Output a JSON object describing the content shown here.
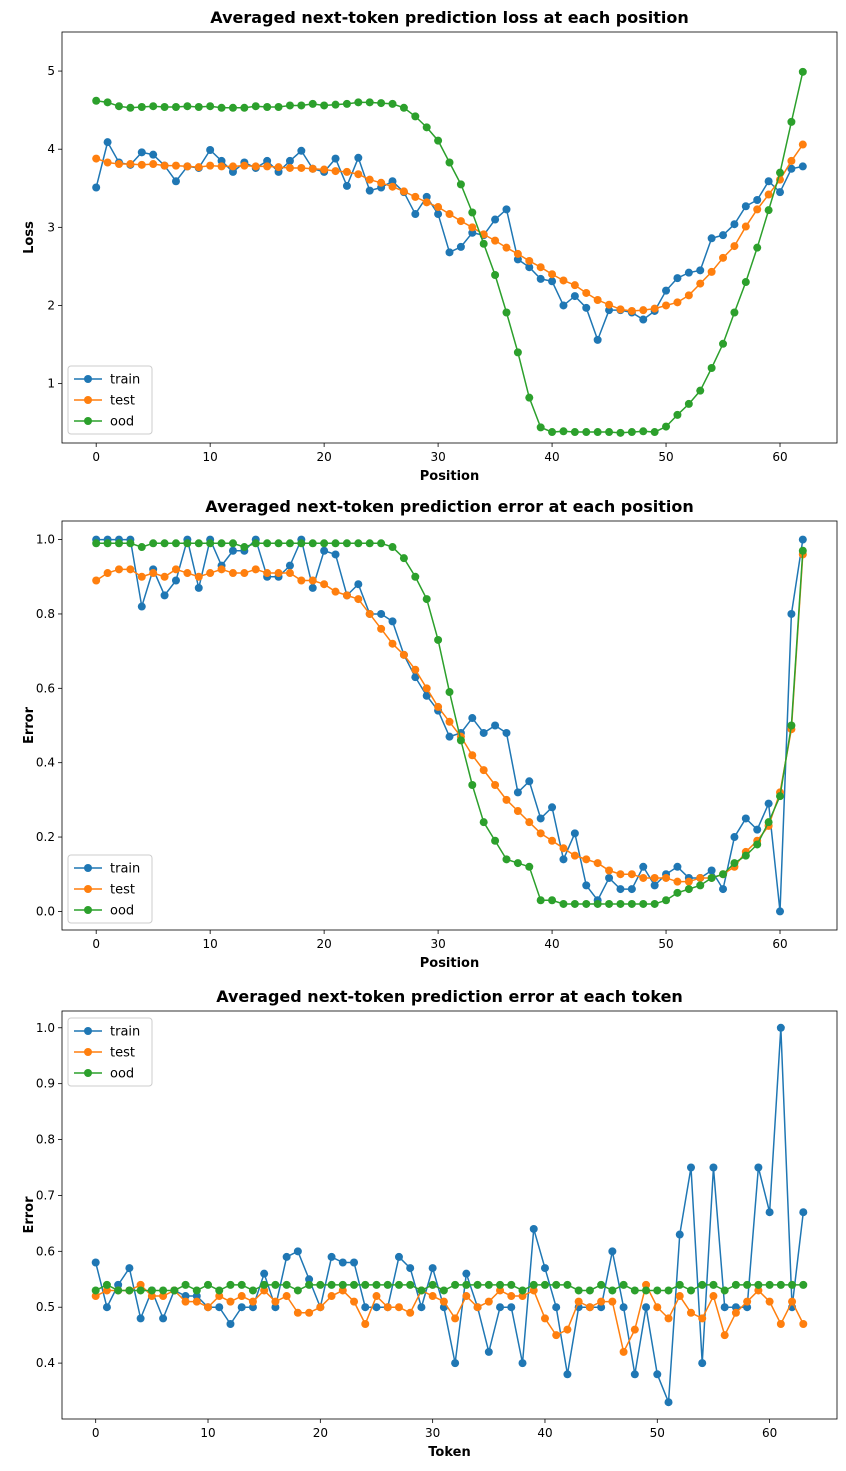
{
  "colors": {
    "train": "#1f77b4",
    "test": "#ff7f0e",
    "ood": "#2ca02c"
  },
  "chart_data": [
    {
      "type": "line",
      "title": "Averaged next-token prediction loss at each position",
      "xlabel": "Position",
      "ylabel": "Loss",
      "xlim": [
        -3,
        65
      ],
      "ylim": [
        0.24,
        5.5
      ],
      "xticks": [
        0,
        10,
        20,
        30,
        40,
        50,
        60
      ],
      "yticks": [
        1,
        2,
        3,
        4,
        5
      ],
      "legend": "lower-left",
      "x": [
        0,
        1,
        2,
        3,
        4,
        5,
        6,
        7,
        8,
        9,
        10,
        11,
        12,
        13,
        14,
        15,
        16,
        17,
        18,
        19,
        20,
        21,
        22,
        23,
        24,
        25,
        26,
        27,
        28,
        29,
        30,
        31,
        32,
        33,
        34,
        35,
        36,
        37,
        38,
        39,
        40,
        41,
        42,
        43,
        44,
        45,
        46,
        47,
        48,
        49,
        50,
        51,
        52,
        53,
        54,
        55,
        56,
        57,
        58,
        59,
        60,
        61,
        62
      ],
      "series": [
        {
          "name": "train",
          "values": [
            3.51,
            4.09,
            3.83,
            3.8,
            3.96,
            3.93,
            3.79,
            3.59,
            3.78,
            3.76,
            3.99,
            3.85,
            3.71,
            3.83,
            3.76,
            3.85,
            3.71,
            3.85,
            3.98,
            3.75,
            3.71,
            3.88,
            3.53,
            3.89,
            3.47,
            3.51,
            3.59,
            3.45,
            3.17,
            3.39,
            3.17,
            2.68,
            2.75,
            2.93,
            2.9,
            3.1,
            3.23,
            2.59,
            2.49,
            2.34,
            2.31,
            2.0,
            2.12,
            1.97,
            1.56,
            1.94,
            1.94,
            1.91,
            1.82,
            1.93,
            2.19,
            2.35,
            2.42,
            2.45,
            2.86,
            2.9,
            3.04,
            3.27,
            3.35,
            3.59,
            3.45,
            3.75,
            3.78
          ]
        },
        {
          "name": "test",
          "values": [
            3.88,
            3.83,
            3.81,
            3.81,
            3.8,
            3.81,
            3.79,
            3.79,
            3.78,
            3.77,
            3.79,
            3.78,
            3.78,
            3.79,
            3.78,
            3.78,
            3.77,
            3.76,
            3.76,
            3.75,
            3.74,
            3.72,
            3.71,
            3.68,
            3.61,
            3.57,
            3.52,
            3.46,
            3.39,
            3.32,
            3.26,
            3.17,
            3.08,
            3.0,
            2.91,
            2.83,
            2.74,
            2.66,
            2.57,
            2.49,
            2.4,
            2.32,
            2.26,
            2.16,
            2.07,
            2.01,
            1.95,
            1.93,
            1.94,
            1.96,
            2.0,
            2.04,
            2.13,
            2.28,
            2.43,
            2.61,
            2.76,
            3.01,
            3.23,
            3.42,
            3.61,
            3.85,
            4.06
          ]
        },
        {
          "name": "ood",
          "values": [
            4.62,
            4.6,
            4.55,
            4.53,
            4.54,
            4.55,
            4.54,
            4.54,
            4.55,
            4.54,
            4.55,
            4.53,
            4.53,
            4.53,
            4.55,
            4.54,
            4.54,
            4.56,
            4.56,
            4.58,
            4.56,
            4.57,
            4.58,
            4.6,
            4.6,
            4.59,
            4.58,
            4.53,
            4.42,
            4.28,
            4.11,
            3.83,
            3.55,
            3.19,
            2.79,
            2.39,
            1.91,
            1.4,
            0.82,
            0.44,
            0.38,
            0.39,
            0.38,
            0.38,
            0.38,
            0.38,
            0.37,
            0.38,
            0.39,
            0.38,
            0.45,
            0.6,
            0.74,
            0.91,
            1.2,
            1.51,
            1.91,
            2.3,
            2.74,
            3.22,
            3.7,
            4.35,
            4.99
          ]
        }
      ]
    },
    {
      "type": "line",
      "title": "Averaged next-token prediction error at each position",
      "xlabel": "Position",
      "ylabel": "Error",
      "xlim": [
        -3,
        65
      ],
      "ylim": [
        -0.05,
        1.05
      ],
      "xticks": [
        0,
        10,
        20,
        30,
        40,
        50,
        60
      ],
      "yticks": [
        0.0,
        0.2,
        0.4,
        0.6,
        0.8,
        1.0
      ],
      "legend": "lower-left",
      "x": [
        0,
        1,
        2,
        3,
        4,
        5,
        6,
        7,
        8,
        9,
        10,
        11,
        12,
        13,
        14,
        15,
        16,
        17,
        18,
        19,
        20,
        21,
        22,
        23,
        24,
        25,
        26,
        27,
        28,
        29,
        30,
        31,
        32,
        33,
        34,
        35,
        36,
        37,
        38,
        39,
        40,
        41,
        42,
        43,
        44,
        45,
        46,
        47,
        48,
        49,
        50,
        51,
        52,
        53,
        54,
        55,
        56,
        57,
        58,
        59,
        60,
        61,
        62
      ],
      "series": [
        {
          "name": "train",
          "values": [
            1.0,
            1.0,
            1.0,
            1.0,
            0.82,
            0.92,
            0.85,
            0.89,
            1.0,
            0.87,
            1.0,
            0.93,
            0.97,
            0.97,
            1.0,
            0.9,
            0.9,
            0.93,
            1.0,
            0.87,
            0.97,
            0.96,
            0.85,
            0.88,
            0.8,
            0.8,
            0.78,
            0.69,
            0.63,
            0.58,
            0.54,
            0.47,
            0.48,
            0.52,
            0.48,
            0.5,
            0.48,
            0.32,
            0.35,
            0.25,
            0.28,
            0.14,
            0.21,
            0.07,
            0.03,
            0.09,
            0.06,
            0.06,
            0.12,
            0.07,
            0.1,
            0.12,
            0.09,
            0.09,
            0.11,
            0.06,
            0.2,
            0.25,
            0.22,
            0.29,
            0.0,
            0.8,
            1.0
          ]
        },
        {
          "name": "test",
          "values": [
            0.89,
            0.91,
            0.92,
            0.92,
            0.9,
            0.91,
            0.9,
            0.92,
            0.91,
            0.9,
            0.91,
            0.92,
            0.91,
            0.91,
            0.92,
            0.91,
            0.91,
            0.91,
            0.89,
            0.89,
            0.88,
            0.86,
            0.85,
            0.84,
            0.8,
            0.76,
            0.72,
            0.69,
            0.65,
            0.6,
            0.55,
            0.51,
            0.47,
            0.42,
            0.38,
            0.34,
            0.3,
            0.27,
            0.24,
            0.21,
            0.19,
            0.17,
            0.15,
            0.14,
            0.13,
            0.11,
            0.1,
            0.1,
            0.09,
            0.09,
            0.09,
            0.08,
            0.08,
            0.09,
            0.09,
            0.1,
            0.12,
            0.16,
            0.19,
            0.23,
            0.32,
            0.49,
            0.96
          ]
        },
        {
          "name": "ood",
          "values": [
            0.99,
            0.99,
            0.99,
            0.99,
            0.98,
            0.99,
            0.99,
            0.99,
            0.99,
            0.99,
            0.99,
            0.99,
            0.99,
            0.98,
            0.99,
            0.99,
            0.99,
            0.99,
            0.99,
            0.99,
            0.99,
            0.99,
            0.99,
            0.99,
            0.99,
            0.99,
            0.98,
            0.95,
            0.9,
            0.84,
            0.73,
            0.59,
            0.46,
            0.34,
            0.24,
            0.19,
            0.14,
            0.13,
            0.12,
            0.03,
            0.03,
            0.02,
            0.02,
            0.02,
            0.02,
            0.02,
            0.02,
            0.02,
            0.02,
            0.02,
            0.03,
            0.05,
            0.06,
            0.07,
            0.09,
            0.1,
            0.13,
            0.15,
            0.18,
            0.24,
            0.31,
            0.5,
            0.97
          ]
        }
      ]
    },
    {
      "type": "line",
      "title": "Averaged next-token prediction error at each token",
      "xlabel": "Token",
      "ylabel": "Error",
      "xlim": [
        -3,
        66
      ],
      "ylim": [
        0.3,
        1.03
      ],
      "xticks": [
        0,
        10,
        20,
        30,
        40,
        50,
        60
      ],
      "yticks": [
        0.4,
        0.5,
        0.6,
        0.7,
        0.8,
        0.9,
        1.0
      ],
      "legend": "upper-left",
      "x": [
        0,
        1,
        2,
        3,
        4,
        5,
        6,
        7,
        8,
        9,
        10,
        11,
        12,
        13,
        14,
        15,
        16,
        17,
        18,
        19,
        20,
        21,
        22,
        23,
        24,
        25,
        26,
        27,
        28,
        29,
        30,
        31,
        32,
        33,
        34,
        35,
        36,
        37,
        38,
        39,
        40,
        41,
        42,
        43,
        44,
        45,
        46,
        47,
        48,
        49,
        50,
        51,
        52,
        53,
        54,
        55,
        56,
        57,
        58,
        59,
        60,
        61,
        62,
        63
      ],
      "series": [
        {
          "name": "train",
          "values": [
            0.58,
            0.5,
            0.54,
            0.57,
            0.48,
            0.53,
            0.48,
            0.53,
            0.52,
            0.52,
            0.5,
            0.5,
            0.47,
            0.5,
            0.5,
            0.56,
            0.5,
            0.59,
            0.6,
            0.55,
            0.5,
            0.59,
            0.58,
            0.58,
            0.5,
            0.5,
            0.5,
            0.59,
            0.57,
            0.5,
            0.57,
            0.5,
            0.4,
            0.56,
            0.5,
            0.42,
            0.5,
            0.5,
            0.4,
            0.64,
            0.57,
            0.5,
            0.38,
            0.5,
            0.5,
            0.5,
            0.6,
            0.5,
            0.38,
            0.5,
            0.38,
            0.33,
            0.63,
            0.75,
            0.4,
            0.75,
            0.5,
            0.5,
            0.5,
            0.75,
            0.67,
            1.0,
            0.5,
            0.67
          ]
        },
        {
          "name": "test",
          "values": [
            0.52,
            0.53,
            0.53,
            0.53,
            0.54,
            0.52,
            0.52,
            0.53,
            0.51,
            0.51,
            0.5,
            0.52,
            0.51,
            0.52,
            0.51,
            0.53,
            0.51,
            0.52,
            0.49,
            0.49,
            0.5,
            0.52,
            0.53,
            0.51,
            0.47,
            0.52,
            0.5,
            0.5,
            0.49,
            0.53,
            0.52,
            0.51,
            0.48,
            0.52,
            0.5,
            0.51,
            0.53,
            0.52,
            0.52,
            0.53,
            0.48,
            0.45,
            0.46,
            0.51,
            0.5,
            0.51,
            0.51,
            0.42,
            0.46,
            0.54,
            0.5,
            0.48,
            0.52,
            0.49,
            0.48,
            0.52,
            0.45,
            0.49,
            0.51,
            0.53,
            0.51,
            0.47,
            0.51,
            0.47
          ]
        },
        {
          "name": "ood",
          "values": [
            0.53,
            0.54,
            0.53,
            0.53,
            0.53,
            0.53,
            0.53,
            0.53,
            0.54,
            0.53,
            0.54,
            0.53,
            0.54,
            0.54,
            0.53,
            0.54,
            0.54,
            0.54,
            0.53,
            0.54,
            0.54,
            0.54,
            0.54,
            0.54,
            0.54,
            0.54,
            0.54,
            0.54,
            0.54,
            0.53,
            0.54,
            0.53,
            0.54,
            0.54,
            0.54,
            0.54,
            0.54,
            0.54,
            0.53,
            0.54,
            0.54,
            0.54,
            0.54,
            0.53,
            0.53,
            0.54,
            0.53,
            0.54,
            0.53,
            0.53,
            0.53,
            0.53,
            0.54,
            0.53,
            0.54,
            0.54,
            0.53,
            0.54,
            0.54,
            0.54,
            0.54,
            0.54,
            0.54,
            0.54
          ]
        }
      ]
    }
  ]
}
